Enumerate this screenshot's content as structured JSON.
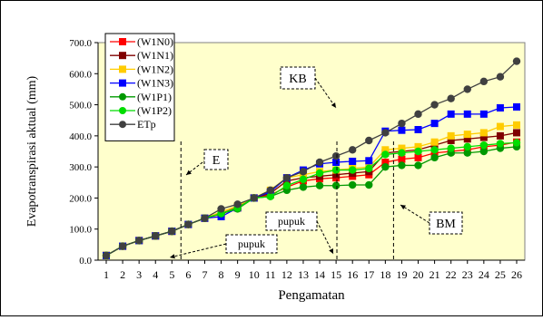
{
  "chart_data": {
    "type": "line",
    "ylabel": "Evapotranspirasi aktual (mm)",
    "xlabel": "Pengamatan",
    "categories": [
      "1",
      "2",
      "3",
      "4",
      "5",
      "6",
      "7",
      "8",
      "9",
      "10",
      "11",
      "12",
      "13",
      "14",
      "15",
      "16",
      "17",
      "18",
      "19",
      "20",
      "21",
      "22",
      "23",
      "24",
      "25",
      "26"
    ],
    "ylim": [
      0,
      700
    ],
    "yticks": [
      "0.0",
      "100.0",
      "200.0",
      "300.0",
      "400.0",
      "500.0",
      "600.0",
      "700.0"
    ],
    "ytick_values": [
      0,
      100,
      200,
      300,
      400,
      500,
      600,
      700
    ],
    "grid": false,
    "legend_position": "top-left",
    "plot_background": "#ffffcc",
    "series": [
      {
        "name": "(W1N0)",
        "color": "#ff0000",
        "marker": "square",
        "values": [
          15,
          45,
          63,
          78,
          93,
          115,
          135,
          148,
          168,
          200,
          210,
          235,
          255,
          262,
          265,
          270,
          275,
          315,
          325,
          330,
          345,
          350,
          355,
          365,
          370,
          380
        ]
      },
      {
        "name": "(W1N1)",
        "color": "#800000",
        "marker": "square",
        "values": [
          15,
          45,
          63,
          78,
          93,
          115,
          135,
          150,
          170,
          200,
          215,
          255,
          265,
          270,
          275,
          280,
          285,
          345,
          350,
          355,
          370,
          385,
          390,
          395,
          400,
          410
        ]
      },
      {
        "name": "(W1N2)",
        "color": "#ffcc00",
        "marker": "square",
        "values": [
          15,
          45,
          63,
          78,
          93,
          115,
          135,
          155,
          175,
          200,
          225,
          265,
          275,
          285,
          290,
          295,
          300,
          355,
          360,
          365,
          380,
          400,
          405,
          410,
          430,
          435
        ]
      },
      {
        "name": "(W1N3)",
        "color": "#0000ff",
        "marker": "square",
        "values": [
          15,
          45,
          63,
          78,
          93,
          115,
          135,
          140,
          168,
          200,
          220,
          265,
          290,
          310,
          315,
          318,
          320,
          415,
          418,
          420,
          440,
          470,
          470,
          470,
          490,
          493
        ]
      },
      {
        "name": "(W1P1)",
        "color": "#009900",
        "marker": "circle",
        "values": [
          15,
          45,
          63,
          78,
          93,
          115,
          135,
          150,
          165,
          200,
          205,
          225,
          235,
          240,
          240,
          242,
          242,
          300,
          305,
          305,
          330,
          345,
          345,
          350,
          360,
          365
        ]
      },
      {
        "name": "(W1P2)",
        "color": "#00dd00",
        "marker": "circle",
        "values": [
          15,
          45,
          63,
          78,
          93,
          115,
          135,
          150,
          168,
          200,
          205,
          240,
          260,
          280,
          290,
          290,
          295,
          340,
          345,
          350,
          355,
          360,
          365,
          370,
          375,
          378
        ]
      },
      {
        "name": "ETp",
        "color": "#404040",
        "marker": "circle",
        "values": [
          15,
          45,
          63,
          78,
          93,
          115,
          135,
          165,
          180,
          200,
          225,
          265,
          285,
          315,
          335,
          355,
          385,
          410,
          440,
          470,
          500,
          520,
          550,
          575,
          590,
          640
        ]
      }
    ],
    "annotations": [
      {
        "text": "E",
        "at_x": "5-6",
        "style": "dashed-box"
      },
      {
        "text": "KB",
        "at_x": "15",
        "style": "dashed-box"
      },
      {
        "text": "BM",
        "at_x": "19",
        "style": "dashed-box"
      },
      {
        "text": "pupuk",
        "style": "dashed-box"
      },
      {
        "text": "pupuk",
        "style": "dashed-box"
      }
    ]
  }
}
